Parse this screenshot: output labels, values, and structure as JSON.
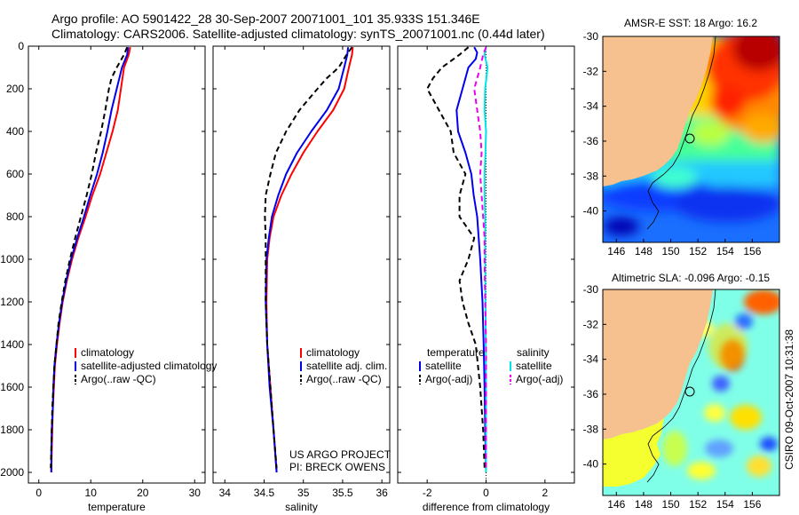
{
  "title_line1": "Argo profile: AO 5901422_28 30-Sep-2007 20071001_101 35.933S 151.346E",
  "title_line2": "Climatology: CARS2006. Satellite-adjusted climatology: synTS_20071001.nc (0.44d later)",
  "colors": {
    "climatology": "#ff0000",
    "satellite": "#0000ee",
    "argo": "#000000",
    "satellite_diff_salinity": "#00e5e5",
    "argo_diff_salinity": "#ee00ee"
  },
  "chart_data": [
    {
      "type": "line",
      "xlabel": "temperature",
      "ylabel": "",
      "xlim": [
        -2,
        32
      ],
      "ylim": [
        2050,
        0
      ],
      "xticks": [
        "0",
        "10",
        "20",
        "30"
      ],
      "yticks": [
        "0",
        "200",
        "400",
        "600",
        "800",
        "1000",
        "1200",
        "1400",
        "1600",
        "1800",
        "2000"
      ],
      "y_reversed": true,
      "legend_position": "lower-right",
      "legend": [
        "climatology",
        "satellite-adjusted climatology",
        "Argo(..raw -QC)"
      ],
      "series": [
        {
          "name": "climatology",
          "style": "solid",
          "color": "#ff0000",
          "points": [
            [
              17.6,
              5
            ],
            [
              17.3,
              40
            ],
            [
              16.4,
              100
            ],
            [
              15.8,
              200
            ],
            [
              15.2,
              300
            ],
            [
              14.2,
              400
            ],
            [
              13.0,
              500
            ],
            [
              11.8,
              600
            ],
            [
              10.3,
              700
            ],
            [
              9.0,
              800
            ],
            [
              7.6,
              900
            ],
            [
              6.4,
              1000
            ],
            [
              5.4,
              1100
            ],
            [
              4.6,
              1200
            ],
            [
              4.0,
              1300
            ],
            [
              3.5,
              1400
            ],
            [
              3.1,
              1500
            ],
            [
              2.9,
              1600
            ],
            [
              2.7,
              1700
            ],
            [
              2.6,
              1800
            ],
            [
              2.5,
              1900
            ],
            [
              2.4,
              2000
            ]
          ]
        },
        {
          "name": "satellite-adjusted climatology",
          "style": "solid",
          "color": "#0000ee",
          "points": [
            [
              17.2,
              5
            ],
            [
              17.0,
              40
            ],
            [
              16.0,
              100
            ],
            [
              15.0,
              200
            ],
            [
              14.0,
              300
            ],
            [
              13.2,
              400
            ],
            [
              12.3,
              500
            ],
            [
              11.2,
              600
            ],
            [
              9.9,
              700
            ],
            [
              8.7,
              800
            ],
            [
              7.4,
              900
            ],
            [
              6.2,
              1000
            ],
            [
              5.3,
              1100
            ],
            [
              4.5,
              1200
            ],
            [
              3.9,
              1300
            ],
            [
              3.4,
              1400
            ],
            [
              3.0,
              1500
            ],
            [
              2.8,
              1600
            ],
            [
              2.7,
              1700
            ],
            [
              2.5,
              1800
            ],
            [
              2.4,
              1900
            ],
            [
              2.4,
              2000
            ]
          ]
        },
        {
          "name": "Argo(..raw -QC)",
          "style": "dashed",
          "color": "#000000",
          "points": [
            [
              17.0,
              5
            ],
            [
              16.4,
              40
            ],
            [
              15.0,
              100
            ],
            [
              14.0,
              150
            ],
            [
              13.5,
              200
            ],
            [
              12.8,
              300
            ],
            [
              12.0,
              400
            ],
            [
              11.0,
              500
            ],
            [
              10.2,
              600
            ],
            [
              9.2,
              700
            ],
            [
              8.1,
              800
            ],
            [
              7.0,
              900
            ],
            [
              6.0,
              1000
            ],
            [
              5.1,
              1100
            ],
            [
              4.4,
              1200
            ],
            [
              3.8,
              1300
            ],
            [
              3.4,
              1400
            ],
            [
              3.0,
              1500
            ],
            [
              2.8,
              1600
            ],
            [
              2.6,
              1700
            ],
            [
              2.5,
              1800
            ],
            [
              2.4,
              1900
            ],
            [
              2.3,
              1980
            ]
          ]
        }
      ]
    },
    {
      "type": "line",
      "xlabel": "salinity",
      "xlim": [
        33.85,
        36.1
      ],
      "ylim": [
        2050,
        0
      ],
      "xticks": [
        "34",
        "34.5",
        "35",
        "35.5",
        "36"
      ],
      "y_reversed": true,
      "legend_position": "lower-right",
      "legend": [
        "climatology",
        "satellite adj. clim.",
        "Argo(..raw -QC)"
      ],
      "annotations": [
        "US ARGO PROJECT",
        "PI: BRECK OWENS"
      ],
      "series": [
        {
          "name": "climatology",
          "style": "solid",
          "color": "#ff0000",
          "points": [
            [
              35.63,
              5
            ],
            [
              35.62,
              40
            ],
            [
              35.58,
              100
            ],
            [
              35.52,
              200
            ],
            [
              35.38,
              300
            ],
            [
              35.18,
              400
            ],
            [
              35.0,
              500
            ],
            [
              34.85,
              600
            ],
            [
              34.72,
              700
            ],
            [
              34.62,
              800
            ],
            [
              34.57,
              900
            ],
            [
              34.54,
              1000
            ],
            [
              34.53,
              1200
            ],
            [
              34.54,
              1400
            ],
            [
              34.58,
              1600
            ],
            [
              34.62,
              1800
            ],
            [
              34.66,
              2000
            ]
          ]
        },
        {
          "name": "satellite adj. clim.",
          "style": "solid",
          "color": "#0000ee",
          "points": [
            [
              35.57,
              5
            ],
            [
              35.56,
              40
            ],
            [
              35.52,
              100
            ],
            [
              35.45,
              200
            ],
            [
              35.3,
              300
            ],
            [
              35.1,
              400
            ],
            [
              34.92,
              500
            ],
            [
              34.78,
              600
            ],
            [
              34.68,
              700
            ],
            [
              34.6,
              800
            ],
            [
              34.56,
              900
            ],
            [
              34.53,
              1000
            ],
            [
              34.52,
              1200
            ],
            [
              34.54,
              1400
            ],
            [
              34.57,
              1600
            ],
            [
              34.62,
              1800
            ],
            [
              34.66,
              2000
            ]
          ]
        },
        {
          "name": "Argo(..raw -QC)",
          "style": "dashed",
          "color": "#000000",
          "points": [
            [
              35.62,
              5
            ],
            [
              35.55,
              40
            ],
            [
              35.45,
              100
            ],
            [
              35.3,
              150
            ],
            [
              35.18,
              200
            ],
            [
              34.95,
              300
            ],
            [
              34.78,
              400
            ],
            [
              34.65,
              500
            ],
            [
              34.58,
              600
            ],
            [
              34.52,
              700
            ],
            [
              34.51,
              800
            ],
            [
              34.52,
              900
            ],
            [
              34.52,
              1000
            ],
            [
              34.52,
              1200
            ],
            [
              34.54,
              1400
            ],
            [
              34.58,
              1600
            ],
            [
              34.62,
              1800
            ],
            [
              34.66,
              1980
            ]
          ]
        }
      ]
    },
    {
      "type": "line",
      "xlabel": "difference from climatology",
      "xlim": [
        -3,
        3
      ],
      "ylim": [
        2050,
        0
      ],
      "xticks": [
        "-2",
        "0",
        "2"
      ],
      "y_reversed": true,
      "legend_position": "lower-right",
      "legend_headers": [
        "temperature",
        "salinity"
      ],
      "legend": [
        "satellite",
        "Argo(-adj)",
        "satellite",
        "Argo(-adj)"
      ],
      "series": [
        {
          "name": "temperature satellite",
          "style": "solid",
          "color": "#0000ee",
          "points": [
            [
              -0.4,
              5
            ],
            [
              -0.3,
              30
            ],
            [
              -0.35,
              60
            ],
            [
              -0.6,
              100
            ],
            [
              -0.8,
              200
            ],
            [
              -1.0,
              300
            ],
            [
              -0.95,
              400
            ],
            [
              -0.7,
              500
            ],
            [
              -0.5,
              600
            ],
            [
              -0.42,
              700
            ],
            [
              -0.3,
              800
            ],
            [
              -0.25,
              900
            ],
            [
              -0.2,
              1000
            ],
            [
              -0.12,
              1200
            ],
            [
              -0.08,
              1400
            ],
            [
              -0.05,
              1600
            ],
            [
              -0.03,
              1800
            ],
            [
              0.0,
              2000
            ]
          ]
        },
        {
          "name": "temperature Argo(-adj)",
          "style": "dashed",
          "color": "#000000",
          "points": [
            [
              -0.6,
              5
            ],
            [
              -0.9,
              40
            ],
            [
              -1.5,
              100
            ],
            [
              -1.8,
              150
            ],
            [
              -2.0,
              200
            ],
            [
              -1.6,
              300
            ],
            [
              -1.2,
              400
            ],
            [
              -1.1,
              500
            ],
            [
              -0.7,
              600
            ],
            [
              -0.9,
              700
            ],
            [
              -0.9,
              800
            ],
            [
              -0.4,
              900
            ],
            [
              -0.6,
              1000
            ],
            [
              -0.9,
              1100
            ],
            [
              -0.8,
              1200
            ],
            [
              -0.6,
              1300
            ],
            [
              -0.35,
              1400
            ],
            [
              -0.2,
              1600
            ],
            [
              -0.1,
              1800
            ],
            [
              -0.05,
              1980
            ]
          ]
        },
        {
          "name": "salinity satellite",
          "style": "solid",
          "color": "#00e5e5",
          "points": [
            [
              0.0,
              5
            ],
            [
              -0.05,
              40
            ],
            [
              0.05,
              100
            ],
            [
              -0.03,
              200
            ],
            [
              -0.05,
              300
            ],
            [
              0.0,
              400
            ],
            [
              -0.02,
              500
            ],
            [
              -0.05,
              600
            ],
            [
              -0.05,
              700
            ],
            [
              -0.03,
              800
            ],
            [
              -0.03,
              900
            ],
            [
              -0.03,
              1000
            ],
            [
              -0.02,
              1200
            ],
            [
              -0.01,
              1400
            ],
            [
              0.0,
              1600
            ],
            [
              0.0,
              1800
            ],
            [
              0.0,
              2000
            ]
          ]
        },
        {
          "name": "salinity Argo(-adj)",
          "style": "dashed",
          "color": "#ee00ee",
          "points": [
            [
              0.0,
              5
            ],
            [
              -0.1,
              40
            ],
            [
              -0.2,
              100
            ],
            [
              -0.4,
              200
            ],
            [
              -0.3,
              300
            ],
            [
              -0.2,
              400
            ],
            [
              -0.15,
              500
            ],
            [
              -0.2,
              600
            ],
            [
              -0.15,
              700
            ],
            [
              -0.1,
              800
            ],
            [
              -0.05,
              900
            ],
            [
              -0.05,
              1000
            ],
            [
              -0.03,
              1200
            ],
            [
              0.0,
              1400
            ],
            [
              0.0,
              1600
            ],
            [
              0.0,
              1800
            ],
            [
              0.0,
              1980
            ]
          ]
        }
      ]
    },
    {
      "type": "heatmap",
      "title": "AMSR-E SST: 18 Argo: 16.2",
      "xticks": [
        "146",
        "148",
        "150",
        "152",
        "154",
        "156"
      ],
      "yticks": [
        "-30",
        "-32",
        "-34",
        "-36",
        "-38",
        "-40"
      ],
      "xlim": [
        145,
        158
      ],
      "ylim": [
        -41.8,
        -30
      ],
      "marker": {
        "lon": 151.346,
        "lat": -35.933
      }
    },
    {
      "type": "heatmap",
      "title": "Altimetric SLA: -0.096 Argo: -0.15",
      "xticks": [
        "146",
        "148",
        "150",
        "152",
        "154",
        "156"
      ],
      "yticks": [
        "-30",
        "-32",
        "-34",
        "-36",
        "-38",
        "-40"
      ],
      "xlim": [
        145,
        158
      ],
      "ylim": [
        -41.8,
        -30
      ],
      "marker": {
        "lon": 151.346,
        "lat": -35.933
      }
    }
  ],
  "footer_vertical": "CSIRO 09-Oct-2007 10:31:38"
}
